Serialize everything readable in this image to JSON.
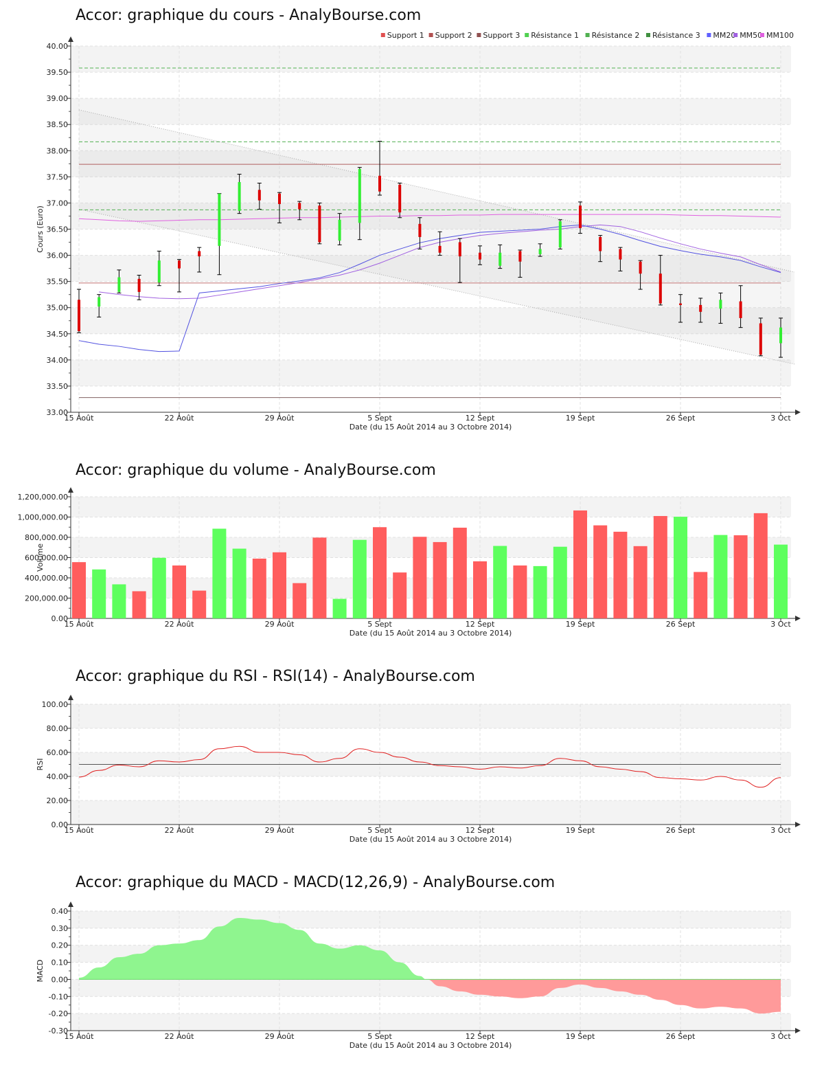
{
  "chart_data": [
    {
      "type": "candlestick",
      "title": "Accor: graphique du cours - AnalyBourse.com",
      "ylabel": "Cours (Euro)",
      "xlabel": "Date (du 15 Août 2014 au 3 Octobre 2014)",
      "ylim": [
        33,
        40
      ],
      "yticks": [
        "33.00",
        "33.50",
        "34.00",
        "34.50",
        "35.00",
        "35.50",
        "36.00",
        "36.50",
        "37.00",
        "37.50",
        "38.00",
        "38.50",
        "39.00",
        "39.50",
        "40.00"
      ],
      "xticks": [
        {
          "i": 0,
          "label": "15 Août"
        },
        {
          "i": 5,
          "label": "22 Août"
        },
        {
          "i": 10,
          "label": "29 Août"
        },
        {
          "i": 15,
          "label": "5 Sept"
        },
        {
          "i": 20,
          "label": "12 Sept"
        },
        {
          "i": 25,
          "label": "19 Sept"
        },
        {
          "i": 30,
          "label": "26 Sept"
        },
        {
          "i": 35,
          "label": "3 Oct"
        }
      ],
      "legend": [
        "Support 1",
        "Support 2",
        "Support 3",
        "Résistance 1",
        "Résistance 2",
        "Résistance 3",
        "MM20",
        "MM50",
        "MM100"
      ],
      "legend_colors": [
        "#e05050",
        "#b05050",
        "#905050",
        "#50d050",
        "#50b050",
        "#409040",
        "#6060ff",
        "#a060e0",
        "#e060e0"
      ],
      "legend_position": "top-right",
      "candles": [
        {
          "o": 35.15,
          "h": 35.35,
          "l": 34.52,
          "c": 34.55
        },
        {
          "o": 35.02,
          "h": 35.25,
          "l": 34.82,
          "c": 35.2
        },
        {
          "o": 35.3,
          "h": 35.72,
          "l": 35.28,
          "c": 35.58
        },
        {
          "o": 35.55,
          "h": 35.62,
          "l": 35.15,
          "c": 35.3
        },
        {
          "o": 35.48,
          "h": 36.08,
          "l": 35.42,
          "c": 35.9
        },
        {
          "o": 35.9,
          "h": 35.92,
          "l": 35.3,
          "c": 35.75
        },
        {
          "o": 36.08,
          "h": 36.15,
          "l": 35.68,
          "c": 35.98
        },
        {
          "o": 36.18,
          "h": 37.18,
          "l": 35.63,
          "c": 37.18
        },
        {
          "o": 36.85,
          "h": 37.55,
          "l": 36.8,
          "c": 37.4
        },
        {
          "o": 37.25,
          "h": 37.38,
          "l": 36.88,
          "c": 37.05
        },
        {
          "o": 37.18,
          "h": 37.2,
          "l": 36.62,
          "c": 36.98
        },
        {
          "o": 37.0,
          "h": 37.03,
          "l": 36.68,
          "c": 36.88
        },
        {
          "o": 36.95,
          "h": 37.0,
          "l": 36.22,
          "c": 36.25
        },
        {
          "o": 36.28,
          "h": 36.8,
          "l": 36.2,
          "c": 36.68
        },
        {
          "o": 36.62,
          "h": 37.68,
          "l": 36.3,
          "c": 37.65
        },
        {
          "o": 37.52,
          "h": 38.18,
          "l": 37.15,
          "c": 37.22
        },
        {
          "o": 37.35,
          "h": 37.38,
          "l": 36.72,
          "c": 36.82
        },
        {
          "o": 36.6,
          "h": 36.72,
          "l": 36.12,
          "c": 36.35
        },
        {
          "o": 36.18,
          "h": 36.45,
          "l": 36.0,
          "c": 36.05
        },
        {
          "o": 36.25,
          "h": 36.32,
          "l": 35.48,
          "c": 35.98
        },
        {
          "o": 36.05,
          "h": 36.18,
          "l": 35.82,
          "c": 35.92
        },
        {
          "o": 35.8,
          "h": 36.2,
          "l": 35.75,
          "c": 36.05
        },
        {
          "o": 36.08,
          "h": 36.1,
          "l": 35.58,
          "c": 35.88
        },
        {
          "o": 36.02,
          "h": 36.22,
          "l": 35.98,
          "c": 36.12
        },
        {
          "o": 36.15,
          "h": 36.68,
          "l": 36.12,
          "c": 36.65
        },
        {
          "o": 36.95,
          "h": 37.02,
          "l": 36.42,
          "c": 36.52
        },
        {
          "o": 36.35,
          "h": 36.38,
          "l": 35.88,
          "c": 36.08
        },
        {
          "o": 36.12,
          "h": 36.15,
          "l": 35.7,
          "c": 35.92
        },
        {
          "o": 35.88,
          "h": 35.9,
          "l": 35.35,
          "c": 35.65
        },
        {
          "o": 35.65,
          "h": 36.0,
          "l": 35.05,
          "c": 35.08
        },
        {
          "o": 35.08,
          "h": 35.25,
          "l": 34.72,
          "c": 35.05
        },
        {
          "o": 35.05,
          "h": 35.18,
          "l": 34.72,
          "c": 34.92
        },
        {
          "o": 34.98,
          "h": 35.28,
          "l": 34.7,
          "c": 35.15
        },
        {
          "o": 35.12,
          "h": 35.42,
          "l": 34.62,
          "c": 34.8
        },
        {
          "o": 34.7,
          "h": 34.8,
          "l": 34.08,
          "c": 34.1
        },
        {
          "o": 34.32,
          "h": 34.8,
          "l": 34.05,
          "c": 34.62
        }
      ],
      "supports": [
        35.47,
        37.74,
        33.28
      ],
      "resistances": [
        36.87,
        38.17,
        39.58
      ],
      "mm20": [
        34.37,
        34.3,
        34.26,
        34.2,
        34.16,
        34.17,
        35.28,
        35.32,
        35.36,
        35.4,
        35.46,
        35.51,
        35.57,
        35.67,
        35.83,
        36.0,
        36.12,
        36.24,
        36.32,
        36.38,
        36.44,
        36.46,
        36.48,
        36.5,
        36.55,
        36.58,
        36.5,
        36.4,
        36.28,
        36.17,
        36.09,
        36.02,
        35.97,
        35.9,
        35.78,
        35.67
      ],
      "mm50": [
        null,
        35.3,
        35.25,
        35.21,
        35.18,
        35.17,
        35.18,
        35.24,
        35.3,
        35.36,
        35.42,
        35.48,
        35.55,
        35.62,
        35.72,
        35.85,
        36.0,
        36.15,
        36.25,
        36.32,
        36.38,
        36.42,
        36.45,
        36.48,
        36.5,
        36.55,
        36.58,
        36.55,
        36.45,
        36.33,
        36.22,
        36.12,
        36.04,
        35.97,
        35.82,
        35.68
      ],
      "mm100": [
        36.7,
        36.68,
        36.66,
        36.65,
        36.66,
        36.67,
        36.68,
        36.68,
        36.69,
        36.7,
        36.71,
        36.72,
        36.72,
        36.73,
        36.74,
        36.75,
        36.75,
        36.76,
        36.76,
        36.77,
        36.77,
        36.78,
        36.78,
        36.78,
        36.78,
        36.78,
        36.78,
        36.78,
        36.78,
        36.78,
        36.77,
        36.76,
        36.76,
        36.75,
        36.74,
        36.73
      ],
      "channel_upper": [
        38.78,
        35.68
      ],
      "channel_lower": [
        36.88,
        33.92
      ]
    },
    {
      "type": "bar",
      "title": "Accor: graphique du volume - AnalyBourse.com",
      "ylabel": "Volume",
      "xlabel": "Date (du 15 Août 2014 au 3 Octobre 2014)",
      "ylim": [
        0,
        1200000
      ],
      "yticks": [
        "0.00",
        "200,000.00",
        "400,000.00",
        "600,000.00",
        "800,000.00",
        "1,000,000.00",
        "1,200,000.00"
      ],
      "xticks": [
        {
          "i": 0,
          "label": "15 Août"
        },
        {
          "i": 5,
          "label": "22 Août"
        },
        {
          "i": 10,
          "label": "29 Août"
        },
        {
          "i": 15,
          "label": "5 Sept"
        },
        {
          "i": 20,
          "label": "12 Sept"
        },
        {
          "i": 25,
          "label": "19 Sept"
        },
        {
          "i": 30,
          "label": "26 Sept"
        },
        {
          "i": 35,
          "label": "3 Oct"
        }
      ],
      "values": [
        555000,
        483000,
        336000,
        268000,
        598000,
        522000,
        274000,
        885000,
        688000,
        590000,
        652000,
        348000,
        797000,
        193000,
        775000,
        900000,
        453000,
        805000,
        753000,
        895000,
        563000,
        715000,
        522000,
        516000,
        707000,
        1065000,
        918000,
        855000,
        713000,
        1010000,
        1003000,
        458000,
        823000,
        820000,
        1038000,
        728000
      ],
      "colors": [
        "r",
        "g",
        "g",
        "r",
        "g",
        "r",
        "r",
        "g",
        "g",
        "r",
        "r",
        "r",
        "r",
        "g",
        "g",
        "r",
        "r",
        "r",
        "r",
        "r",
        "r",
        "g",
        "r",
        "g",
        "g",
        "r",
        "r",
        "r",
        "r",
        "r",
        "g",
        "r",
        "g",
        "r",
        "r",
        "g"
      ]
    },
    {
      "type": "line",
      "title": "Accor: graphique du RSI - RSI(14) - AnalyBourse.com",
      "ylabel": "RSI",
      "xlabel": "Date (du 15 Août 2014 au 3 Octobre 2014)",
      "ylim": [
        0,
        100
      ],
      "yticks": [
        "0.00",
        "20.00",
        "40.00",
        "60.00",
        "80.00",
        "100.00"
      ],
      "xticks": [
        {
          "i": 0,
          "label": "15 Août"
        },
        {
          "i": 5,
          "label": "22 Août"
        },
        {
          "i": 10,
          "label": "29 Août"
        },
        {
          "i": 15,
          "label": "5 Sept"
        },
        {
          "i": 20,
          "label": "12 Sept"
        },
        {
          "i": 25,
          "label": "19 Sept"
        },
        {
          "i": 30,
          "label": "26 Sept"
        },
        {
          "i": 35,
          "label": "3 Oct"
        }
      ],
      "values": [
        39.5,
        45,
        49.5,
        48,
        53,
        52,
        54,
        63,
        65,
        60,
        60,
        58,
        52,
        55,
        63,
        60,
        56,
        52,
        49,
        48,
        46,
        48,
        47,
        49,
        55,
        53,
        48,
        46,
        44,
        39,
        38,
        37,
        40,
        37,
        31,
        39
      ],
      "reference": 50
    },
    {
      "type": "area",
      "title": "Accor: graphique du MACD - MACD(12,26,9) - AnalyBourse.com",
      "ylabel": "MACD",
      "xlabel": "Date (du 15 Août 2014 au 3 Octobre 2014)",
      "ylim": [
        -0.3,
        0.4
      ],
      "yticks": [
        "-0.30",
        "-0.20",
        "-0.10",
        "0.00",
        "0.10",
        "0.20",
        "0.30",
        "0.40"
      ],
      "xticks": [
        {
          "i": 0,
          "label": "15 Août"
        },
        {
          "i": 5,
          "label": "22 Août"
        },
        {
          "i": 10,
          "label": "29 Août"
        },
        {
          "i": 15,
          "label": "5 Sept"
        },
        {
          "i": 20,
          "label": "12 Sept"
        },
        {
          "i": 25,
          "label": "19 Sept"
        },
        {
          "i": 30,
          "label": "26 Sept"
        },
        {
          "i": 35,
          "label": "3 Oct"
        }
      ],
      "values": [
        0.01,
        0.07,
        0.13,
        0.15,
        0.2,
        0.21,
        0.23,
        0.31,
        0.36,
        0.35,
        0.33,
        0.29,
        0.21,
        0.18,
        0.2,
        0.17,
        0.1,
        0.02,
        -0.04,
        -0.07,
        -0.09,
        -0.1,
        -0.11,
        -0.1,
        -0.05,
        -0.03,
        -0.05,
        -0.07,
        -0.09,
        -0.12,
        -0.15,
        -0.17,
        -0.16,
        -0.17,
        -0.2,
        -0.19
      ],
      "reference": 0
    }
  ]
}
